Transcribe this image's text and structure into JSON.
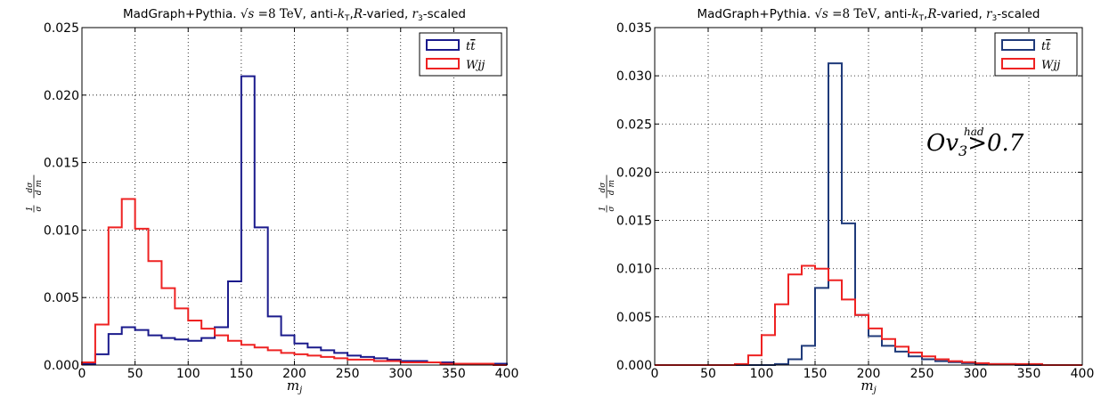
{
  "chart_data": [
    {
      "type": "step",
      "title": "MadGraph+Pythia. √s =8 TeV, anti-k_T,R-varied, r_3-scaled",
      "xlabel": "m_j",
      "ylabel": "1/σ dσ/d m_j",
      "xlim": [
        0,
        400
      ],
      "ylim": [
        0,
        0.025
      ],
      "xticks": [
        "0",
        "50",
        "100",
        "150",
        "200",
        "250",
        "300",
        "350",
        "400"
      ],
      "yticks": [
        "0.000",
        "0.005",
        "0.010",
        "0.015",
        "0.020",
        "0.025"
      ],
      "grid": true,
      "legend_position": "upper right",
      "bin_edges": [
        0,
        12.5,
        25,
        37.5,
        50,
        62.5,
        75,
        87.5,
        100,
        112.5,
        125,
        137.5,
        150,
        162.5,
        175,
        187.5,
        200,
        212.5,
        225,
        237.5,
        250,
        262.5,
        275,
        287.5,
        300,
        312.5,
        325,
        337.5,
        350,
        362.5,
        375,
        387.5,
        400
      ],
      "series": [
        {
          "name": "tt̄",
          "color": "#1a1a8c",
          "values": [
            0.0001,
            0.0008,
            0.0023,
            0.0028,
            0.0026,
            0.0022,
            0.002,
            0.0019,
            0.0018,
            0.002,
            0.0028,
            0.0062,
            0.0214,
            0.0102,
            0.0036,
            0.0022,
            0.0016,
            0.0013,
            0.0011,
            0.0009,
            0.0007,
            0.0006,
            0.0005,
            0.0004,
            0.0003,
            0.0003,
            0.0002,
            0.0002,
            0.0001,
            0.0001,
            0.0001,
            0.0001
          ]
        },
        {
          "name": "Wjj",
          "color": "#ee2222",
          "values": [
            0.0002,
            0.003,
            0.0102,
            0.0123,
            0.0101,
            0.0077,
            0.0057,
            0.0042,
            0.0033,
            0.0027,
            0.0022,
            0.0018,
            0.0015,
            0.0013,
            0.0011,
            0.0009,
            0.0008,
            0.0007,
            0.0006,
            0.0005,
            0.0004,
            0.0004,
            0.0003,
            0.0003,
            0.0002,
            0.0002,
            0.0002,
            0.0001,
            0.0001,
            0.0001,
            0.0001,
            0.0
          ]
        }
      ]
    },
    {
      "type": "step",
      "title": "MadGraph+Pythia. √s =8 TeV, anti-k_T,R-varied, r_3-scaled",
      "xlabel": "m_j",
      "ylabel": "1/σ dσ/d m_j",
      "annotation": "Ov_3^had >0.7",
      "xlim": [
        0,
        400
      ],
      "ylim": [
        0,
        0.035
      ],
      "xticks": [
        "0",
        "50",
        "100",
        "150",
        "200",
        "250",
        "300",
        "350",
        "400"
      ],
      "yticks": [
        "0.000",
        "0.005",
        "0.010",
        "0.015",
        "0.020",
        "0.025",
        "0.030",
        "0.035"
      ],
      "grid": true,
      "legend_position": "upper right",
      "bin_edges": [
        0,
        12.5,
        25,
        37.5,
        50,
        62.5,
        75,
        87.5,
        100,
        112.5,
        125,
        137.5,
        150,
        162.5,
        175,
        187.5,
        200,
        212.5,
        225,
        237.5,
        250,
        262.5,
        275,
        287.5,
        300,
        312.5,
        325,
        337.5,
        350,
        362.5,
        375,
        387.5,
        400
      ],
      "series": [
        {
          "name": "tt̄",
          "color": "#1f3a7a",
          "values": [
            0,
            0,
            0,
            0,
            0,
            0,
            0,
            0,
            0,
            0.0001,
            0.0006,
            0.002,
            0.008,
            0.0313,
            0.0147,
            0.0052,
            0.003,
            0.002,
            0.0014,
            0.0009,
            0.0006,
            0.0004,
            0.0003,
            0.0002,
            0.0001,
            0.0001,
            0.0001,
            0,
            0,
            0,
            0,
            0
          ]
        },
        {
          "name": "Wjj",
          "color": "#ee2222",
          "values": [
            0,
            0,
            0,
            0,
            0,
            0,
            0.0001,
            0.001,
            0.0031,
            0.0063,
            0.0094,
            0.0103,
            0.01,
            0.0088,
            0.0068,
            0.0052,
            0.0038,
            0.0027,
            0.0019,
            0.0013,
            0.0009,
            0.0006,
            0.0004,
            0.0003,
            0.0002,
            0.0001,
            0.0001,
            0.0001,
            0.0001,
            0,
            0,
            0
          ]
        }
      ]
    }
  ]
}
